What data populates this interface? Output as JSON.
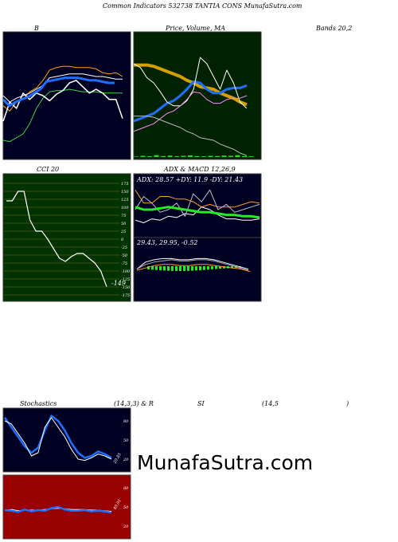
{
  "header": {
    "title": "Common  Indicators 532738  TANTIA CONS MunafaSutra.com"
  },
  "colors": {
    "blue_panel": "#000022",
    "green_panel": "#002200",
    "cci_panel": "#003300",
    "rsi_panel": "#990000",
    "gold": "#d4a000",
    "line_blue": "#1f6fff",
    "line_green": "#3fd14a",
    "line_orange": "#ff9f1a"
  },
  "watermark": "MunafaSutra.com",
  "chart_data": [
    {
      "type": "line",
      "title": "B",
      "series": [
        {
          "values": [
            0.58,
            0.62,
            0.55,
            0.53,
            0.47,
            0.44,
            0.38,
            0.3,
            0.28,
            0.27,
            0.27,
            0.28,
            0.28,
            0.28,
            0.29,
            0.32,
            0.33,
            0.32,
            0.35
          ]
        },
        {
          "values": [
            0.5,
            0.55,
            0.52,
            0.5,
            0.48,
            0.45,
            0.42,
            0.36,
            0.35,
            0.34,
            0.33,
            0.33,
            0.33,
            0.34,
            0.35,
            0.35,
            0.36,
            0.37,
            0.37
          ]
        },
        {
          "values": [
            0.85,
            0.86,
            0.83,
            0.8,
            0.72,
            0.6,
            0.52,
            0.47,
            0.46,
            0.46,
            0.45,
            0.46,
            0.47,
            0.47,
            0.47,
            0.48,
            0.48,
            0.48,
            0.48
          ]
        },
        {
          "values": [
            0.7,
            0.55,
            0.6,
            0.48,
            0.53,
            0.48,
            0.5,
            0.54,
            0.49,
            0.46,
            0.4,
            0.38,
            0.43,
            0.48,
            0.45,
            0.48,
            0.53,
            0.53,
            0.68
          ]
        }
      ]
    },
    {
      "type": "line",
      "title": "Price,  Volume,  MA",
      "series": [
        {
          "values": [
            0.3,
            0.32,
            0.34,
            0.36,
            0.4,
            0.44,
            0.46,
            0.5,
            0.55,
            0.61,
            0.6,
            0.55,
            0.52,
            0.52,
            0.55,
            0.56,
            0.56,
            0.58
          ]
        },
        {
          "values": [
            0.74,
            0.74,
            0.74,
            0.73,
            0.71,
            0.69,
            0.67,
            0.65,
            0.62,
            0.6,
            0.57,
            0.56,
            0.55,
            0.52,
            0.5,
            0.48,
            0.45,
            0.43
          ]
        },
        {
          "values": [
            0.75,
            0.72,
            0.64,
            0.6,
            0.53,
            0.45,
            0.42,
            0.42,
            0.46,
            0.55,
            0.8,
            0.75,
            0.65,
            0.55,
            0.7,
            0.6,
            0.45,
            0.4
          ]
        }
      ],
      "volume": [
        0.2,
        0.5,
        0.3,
        0.8,
        0.4,
        0.6,
        0.3,
        0.5,
        0.7,
        0.4,
        0.3,
        0.5,
        0.4,
        0.6,
        0.5,
        0.8,
        0.4,
        0.3
      ]
    },
    {
      "type": "line",
      "title": "Bands 20,2"
    },
    {
      "type": "line",
      "title": "CCI 20",
      "yticks": [
        "175",
        "150",
        "125",
        "100",
        "75",
        "50",
        "25",
        "0",
        "-25",
        "-50",
        "-75",
        "-100",
        "-125",
        "-150",
        "-175"
      ],
      "ylim": [
        -175,
        175
      ],
      "values": [
        120,
        120,
        150,
        150,
        60,
        25,
        25,
        0,
        -30,
        -60,
        -70,
        -55,
        -45,
        -45,
        -60,
        -75,
        -100,
        -149
      ],
      "last_label": "-149"
    },
    {
      "type": "line",
      "title": "ADX  & MACD 12,26,9",
      "subtitle": "ADX: 28.57  +DY: 11.9  -DY: 21.43",
      "series": [
        {
          "values": [
            35,
            25,
            25,
            30,
            30,
            28,
            28,
            26,
            22,
            24,
            22,
            22,
            22,
            24,
            26,
            25
          ]
        },
        {
          "values": [
            12,
            10,
            13,
            12,
            15,
            14,
            17,
            16,
            22,
            20,
            16,
            13,
            13,
            12,
            12,
            13
          ]
        },
        {
          "values": [
            20,
            30,
            25,
            18,
            20,
            25,
            15,
            32,
            26,
            35,
            20,
            24,
            18,
            20,
            22,
            24
          ]
        }
      ],
      "macd_label": "29.43,  29.95,  -0.52"
    },
    {
      "type": "line",
      "title": "Stochastics",
      "params": "(14,3,3) & R",
      "yticks": [
        "80",
        "50",
        "20"
      ],
      "ylim": [
        0,
        100
      ],
      "series": [
        {
          "values": [
            80,
            75,
            60,
            45,
            25,
            30,
            70,
            85,
            70,
            55,
            35,
            20,
            18,
            22,
            28,
            25,
            20
          ]
        },
        {
          "values": [
            85,
            70,
            55,
            40,
            30,
            38,
            65,
            88,
            80,
            65,
            45,
            30,
            22,
            25,
            32,
            28,
            22
          ]
        }
      ],
      "last_label": "20.85"
    },
    {
      "type": "line",
      "title": "RSI",
      "params": "(14,5",
      "params_close": ")",
      "yticks": [
        "80",
        "50",
        "20"
      ],
      "ylim": [
        0,
        100
      ],
      "series": [
        {
          "values": [
            45,
            44,
            42,
            46,
            43,
            45,
            44,
            48,
            50,
            46,
            44,
            44,
            45,
            43,
            44,
            43,
            41
          ]
        },
        {
          "values": [
            45,
            46,
            44,
            45,
            45,
            45,
            46,
            47,
            48,
            47,
            46,
            46,
            46,
            45,
            45,
            44,
            43
          ]
        }
      ],
      "last_label": "40.91"
    }
  ],
  "labels": {
    "rsi_label_si": "SI"
  }
}
